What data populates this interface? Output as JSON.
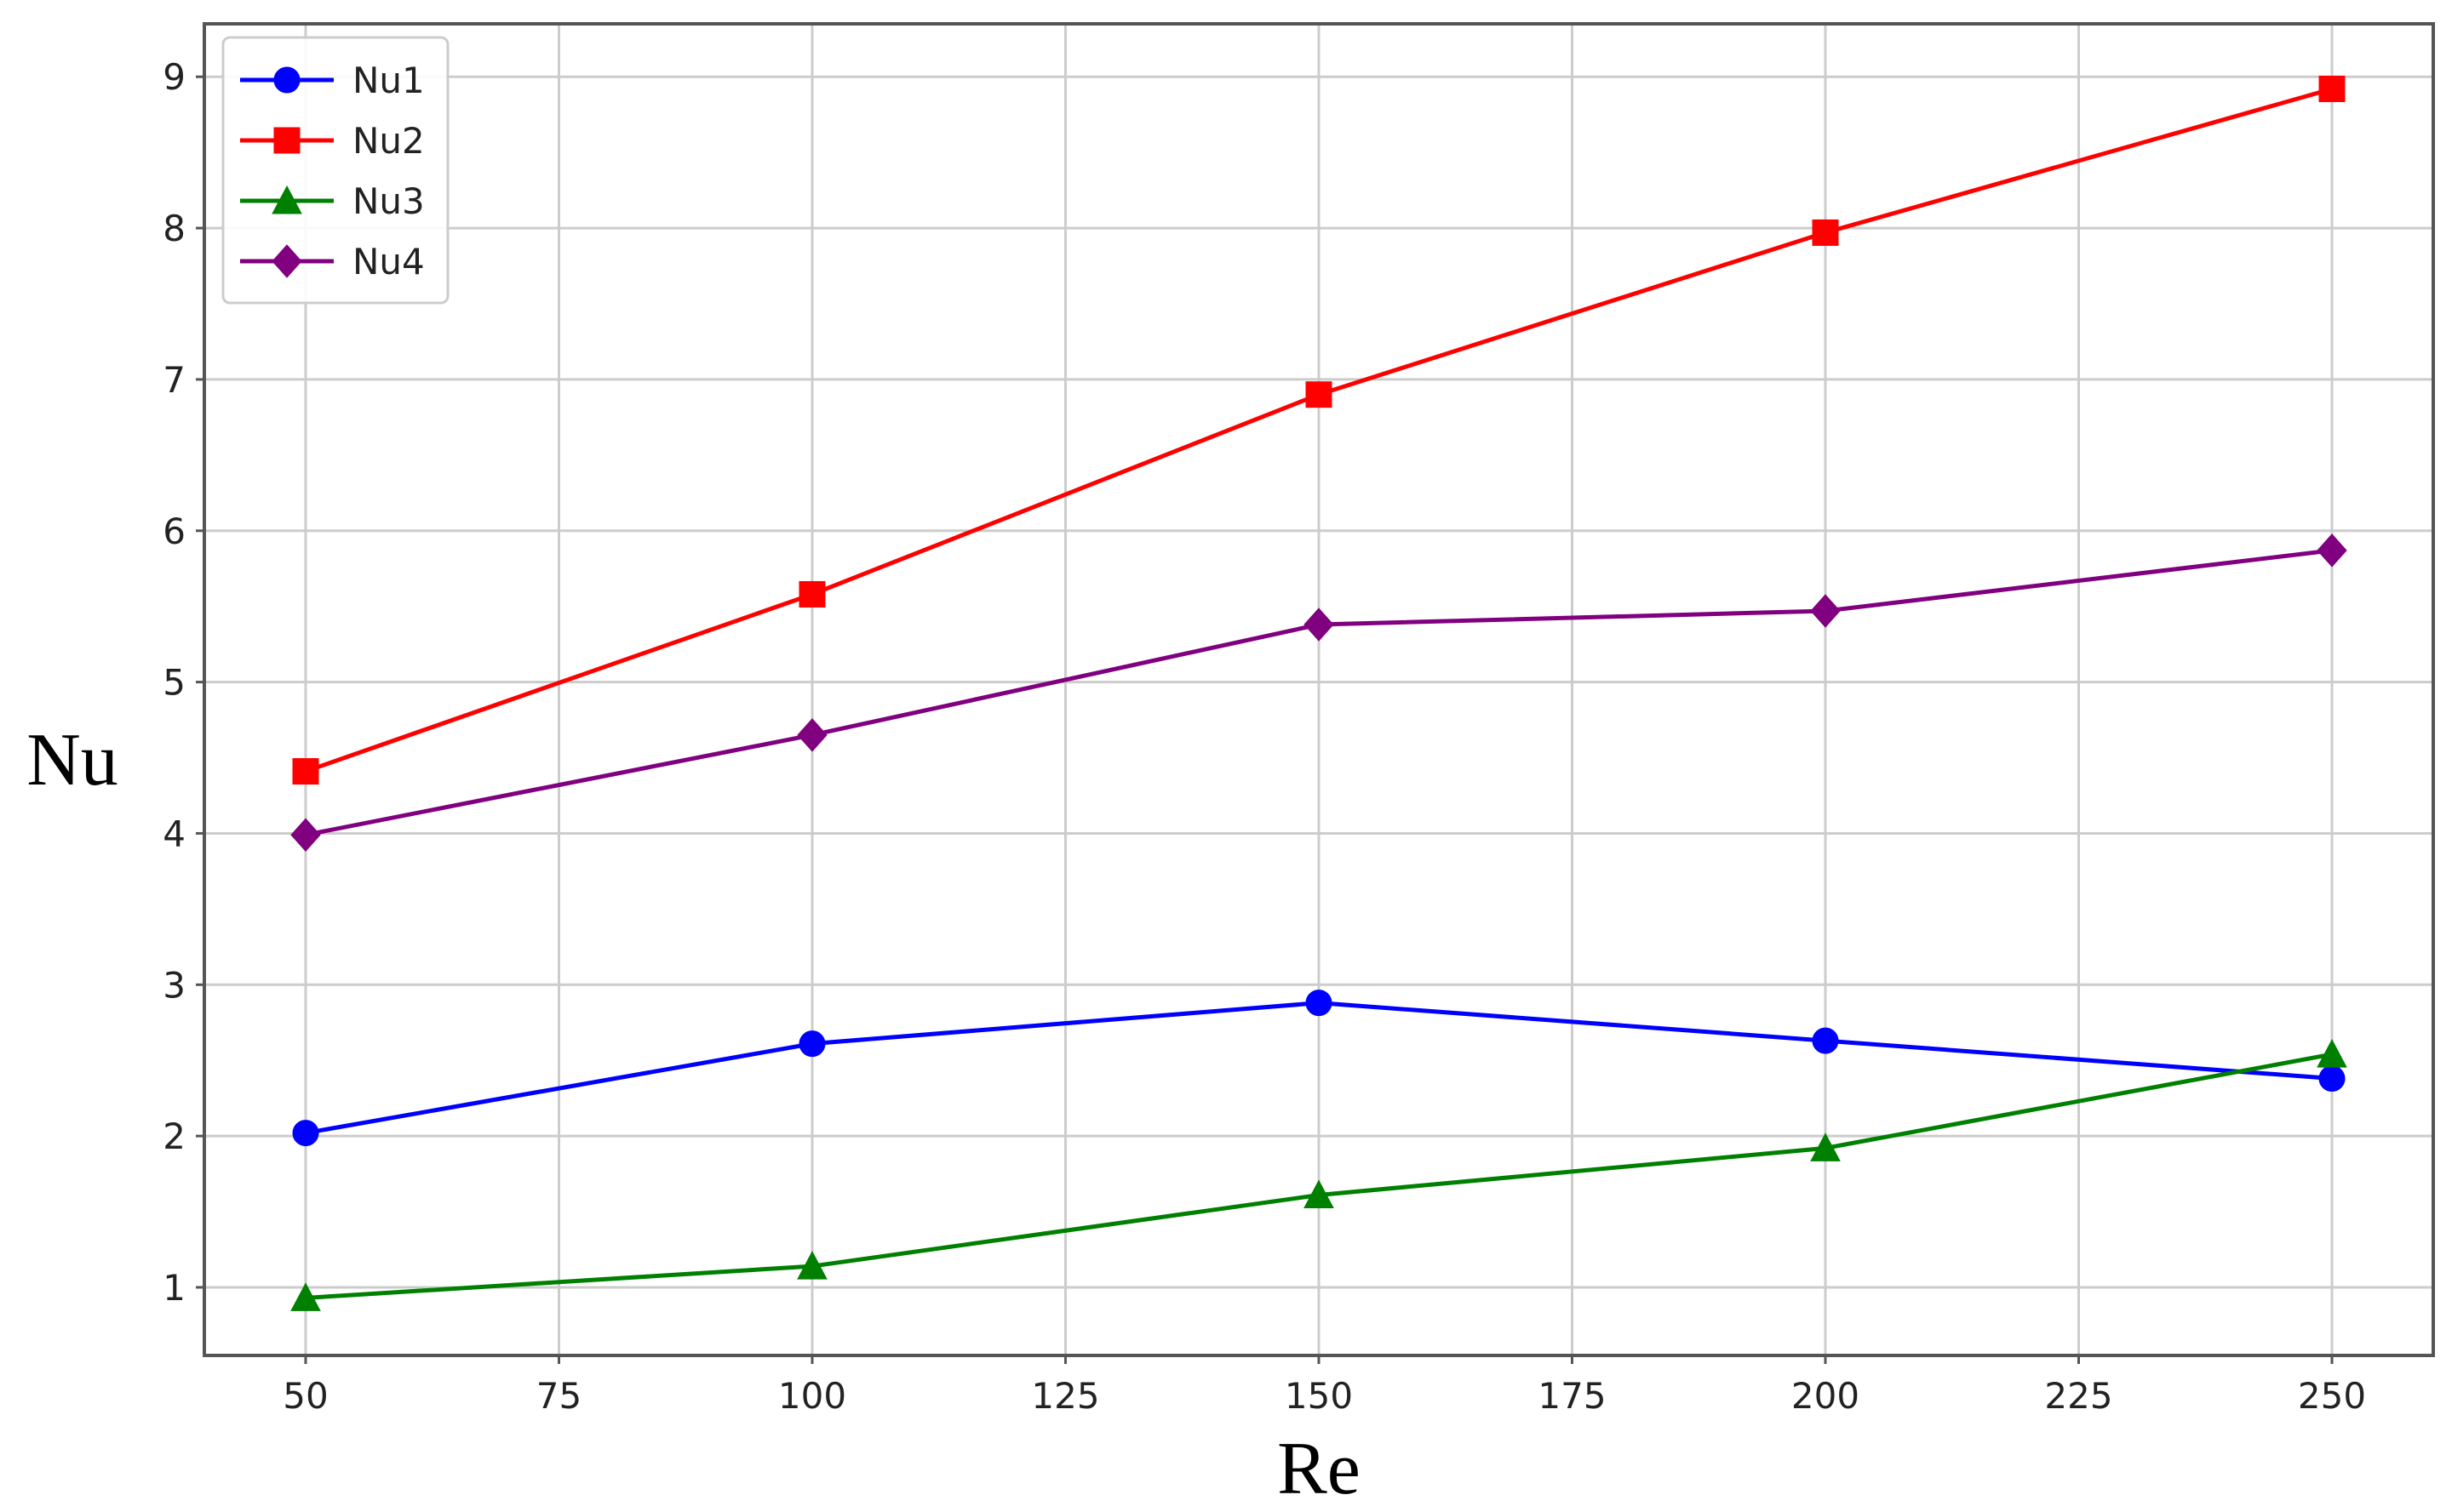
{
  "chart_data": {
    "type": "line",
    "title": "",
    "xlabel": "Re",
    "ylabel": "Nu",
    "x": [
      50,
      100,
      150,
      200,
      250
    ],
    "xlim": [
      40,
      260
    ],
    "ylim": [
      0.55,
      9.35
    ],
    "xticks": [
      50,
      75,
      100,
      125,
      150,
      175,
      200,
      225,
      250
    ],
    "yticks": [
      1,
      2,
      3,
      4,
      5,
      6,
      7,
      8,
      9
    ],
    "grid": true,
    "legend_position": "top-left",
    "series": [
      {
        "name": "Nu1",
        "color": "#0000ff",
        "marker": "circle",
        "values": [
          2.02,
          2.61,
          2.88,
          2.63,
          2.38
        ]
      },
      {
        "name": "Nu2",
        "color": "#ff0000",
        "marker": "square",
        "values": [
          4.41,
          5.58,
          6.9,
          7.97,
          8.92
        ]
      },
      {
        "name": "Nu3",
        "color": "#008000",
        "marker": "triangle",
        "values": [
          0.93,
          1.14,
          1.61,
          1.92,
          2.54
        ]
      },
      {
        "name": "Nu4",
        "color": "#800080",
        "marker": "diamond",
        "values": [
          3.99,
          4.65,
          5.38,
          5.47,
          5.87
        ]
      }
    ]
  }
}
